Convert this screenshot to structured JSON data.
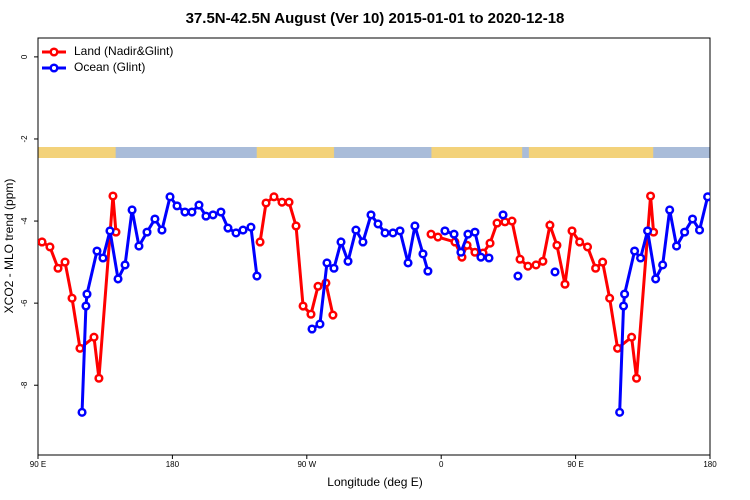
{
  "chart_data": {
    "type": "line",
    "title": "37.5N-42.5N August (Ver 10)   2015-01-01 to 2020-12-18",
    "x_label": "Longitude (deg E)",
    "y_label": "XCO2 - MLO trend (ppm)",
    "xlim": [
      90,
      540
    ],
    "ylim": [
      -9.7,
      0.46
    ],
    "xticks": [
      {
        "value": 90,
        "label": "90 E"
      },
      180,
      {
        "value": 270,
        "label": "90 W"
      },
      {
        "value": 360,
        "label": "0"
      },
      {
        "value": 450,
        "label": "90 E"
      },
      {
        "value": 540,
        "label": "180"
      }
    ],
    "yticks": [
      0,
      -2,
      -4,
      -6,
      -8
    ],
    "legend": "top-left",
    "series": [
      {
        "name": "Land (Nadir&Glint)",
        "color": "#ff0000",
        "x": [
          92.7,
          98.0,
          103.4,
          108.1,
          112.8,
          118.1,
          127.5,
          130.8,
          140.2,
          142.2,
          null,
          238.7,
          242.7,
          248.0,
          253.4,
          258.1,
          262.8,
          267.5,
          272.8,
          277.5,
          282.8,
          287.5,
          null,
          353.2,
          357.8,
          369.2,
          373.9,
          377.3,
          382.6,
          388.0,
          392.7,
          397.4,
          402.7,
          407.4,
          412.8,
          418.1,
          423.5,
          428.1,
          432.8,
          437.5,
          442.9,
          447.6,
          452.7,
          458.0,
          463.4,
          468.1,
          472.8,
          478.1,
          487.5,
          490.8,
          500.2,
          502.2
        ],
        "values": [
          -4.51,
          -4.63,
          -5.15,
          -5.0,
          -5.88,
          -7.1,
          -6.83,
          -7.83,
          -3.39,
          -4.27,
          null,
          -4.51,
          -3.56,
          -3.41,
          -3.54,
          -3.54,
          -4.12,
          -6.07,
          -6.27,
          -5.59,
          -5.51,
          -6.29,
          null,
          -4.32,
          -4.39,
          -4.51,
          -4.88,
          -4.59,
          -4.76,
          -4.78,
          -4.54,
          -4.05,
          -4.02,
          -4.0,
          -4.93,
          -5.1,
          -5.07,
          -4.98,
          -4.1,
          -4.59,
          -5.54,
          -4.24,
          -4.51,
          -4.63,
          -5.15,
          -5.0,
          -5.88,
          -7.1,
          -6.83,
          -7.83,
          -3.39,
          -4.27
        ]
      },
      {
        "name": "Ocean (Glint)",
        "color": "#0000ff",
        "x": [
          119.5,
          122.1,
          122.8,
          129.5,
          133.5,
          138.2,
          143.6,
          148.3,
          153.0,
          157.6,
          163.0,
          168.3,
          173.0,
          178.4,
          183.1,
          188.4,
          193.1,
          197.8,
          202.5,
          207.2,
          212.5,
          217.2,
          222.6,
          227.3,
          232.6,
          236.6,
          null,
          273.5,
          278.8,
          283.5,
          288.2,
          292.9,
          297.6,
          302.9,
          307.6,
          313.0,
          317.7,
          322.4,
          327.7,
          332.4,
          337.8,
          342.4,
          347.8,
          351.1,
          null,
          362.5,
          368.6,
          373.2,
          377.9,
          382.6,
          386.6,
          392.0,
          null,
          401.4,
          null,
          411.4,
          null,
          436.2,
          null,
          479.5,
          482.1,
          482.8,
          489.5,
          493.5,
          498.2,
          503.6,
          508.3,
          513.0,
          517.6,
          523.0,
          528.3,
          533.0,
          538.4
        ],
        "values": [
          -8.66,
          -6.07,
          -5.78,
          -4.73,
          -4.9,
          -4.24,
          -5.41,
          -5.07,
          -3.73,
          -4.61,
          -4.27,
          -3.95,
          -4.22,
          -3.41,
          -3.63,
          -3.78,
          -3.78,
          -3.61,
          -3.88,
          -3.85,
          -3.78,
          -4.17,
          -4.29,
          -4.22,
          -4.15,
          -5.34,
          null,
          -6.63,
          -6.51,
          -5.02,
          -5.15,
          -4.51,
          -4.98,
          -4.22,
          -4.51,
          -3.85,
          -4.07,
          -4.29,
          -4.29,
          -4.24,
          -5.02,
          -4.12,
          -4.8,
          -5.22,
          null,
          -4.24,
          -4.32,
          -4.76,
          -4.32,
          -4.27,
          -4.88,
          -4.9,
          null,
          -3.85,
          null,
          -5.34,
          null,
          -5.24,
          null,
          -8.66,
          -6.07,
          -5.78,
          -4.73,
          -4.9,
          -4.24,
          -5.41,
          -5.07,
          -3.73,
          -4.61,
          -4.27,
          -3.95,
          -4.22,
          -3.41
        ]
      }
    ]
  }
}
